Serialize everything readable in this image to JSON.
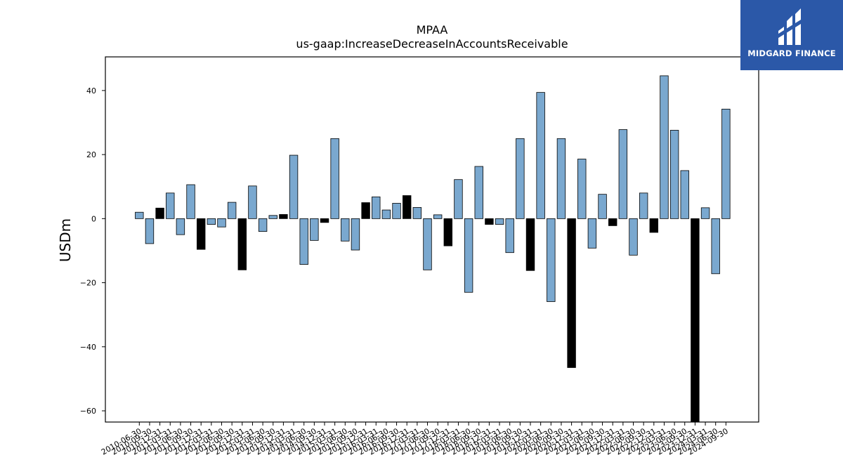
{
  "chart_data": {
    "type": "bar",
    "title": "MPAA",
    "subtitle": "us-gaap:IncreaseDecreaseInAccountsReceivable",
    "ylabel": "USDm",
    "xlabel": "",
    "ylim": [
      -63.5,
      50.5
    ],
    "yticks": [
      -60,
      -40,
      -20,
      0,
      20,
      40
    ],
    "grid": false,
    "colors": {
      "positive_quarter": "#7aa8cf",
      "q4_highlight": "#000000",
      "edge": "#000000"
    },
    "categories": [
      "2010-06-30",
      "2010-09-30",
      "2010-12-31",
      "2011-03-31",
      "2011-06-30",
      "2011-09-30",
      "2011-12-31",
      "2012-03-31",
      "2012-06-30",
      "2012-09-30",
      "2012-12-31",
      "2013-03-31",
      "2013-06-30",
      "2013-09-30",
      "2013-12-31",
      "2014-03-31",
      "2014-06-30",
      "2014-09-30",
      "2014-12-31",
      "2015-03-31",
      "2015-06-30",
      "2015-09-30",
      "2015-12-31",
      "2016-03-31",
      "2016-06-30",
      "2016-09-30",
      "2016-12-31",
      "2017-03-31",
      "2017-06-30",
      "2017-09-30",
      "2017-12-31",
      "2018-03-31",
      "2018-06-30",
      "2018-09-30",
      "2018-12-31",
      "2019-03-31",
      "2019-06-30",
      "2019-09-30",
      "2019-12-31",
      "2020-03-31",
      "2020-06-30",
      "2020-09-30",
      "2020-12-31",
      "2021-03-31",
      "2021-06-30",
      "2021-09-30",
      "2021-12-31",
      "2022-03-31",
      "2022-06-30",
      "2022-09-30",
      "2022-12-31",
      "2023-03-31",
      "2023-06-30",
      "2023-09-30",
      "2023-12-31",
      "2024-03-31",
      "2024-06-30",
      "2024-09-30"
    ],
    "values": [
      2.0,
      -7.8,
      3.3,
      8.0,
      -5.0,
      10.6,
      -9.6,
      -1.8,
      -2.6,
      5.1,
      -16.0,
      10.2,
      -4.0,
      1.0,
      1.3,
      19.8,
      -14.3,
      -6.8,
      -1.2,
      25.0,
      -7.0,
      -9.8,
      5.0,
      6.8,
      2.7,
      4.8,
      7.2,
      3.5,
      -16.0,
      1.2,
      -8.5,
      12.2,
      -23.0,
      16.3,
      -1.8,
      -1.8,
      -10.6,
      25.0,
      -16.2,
      39.4,
      -25.9,
      25.0,
      -46.5,
      18.6,
      -9.2,
      7.6,
      -2.2,
      27.8,
      -11.4,
      8.0,
      -4.3,
      44.6,
      27.6,
      15.0,
      -63.5,
      3.4,
      -17.2,
      34.2
    ],
    "highlight": [
      false,
      false,
      true,
      false,
      false,
      false,
      true,
      false,
      false,
      false,
      true,
      false,
      false,
      false,
      true,
      false,
      false,
      false,
      true,
      false,
      false,
      false,
      true,
      false,
      false,
      false,
      true,
      false,
      false,
      false,
      true,
      false,
      false,
      false,
      true,
      false,
      false,
      false,
      true,
      false,
      false,
      false,
      true,
      false,
      false,
      false,
      true,
      false,
      false,
      false,
      true,
      false,
      false,
      false,
      true,
      false,
      false,
      false
    ]
  },
  "logo": {
    "text": "MIDGARD FINANCE"
  }
}
